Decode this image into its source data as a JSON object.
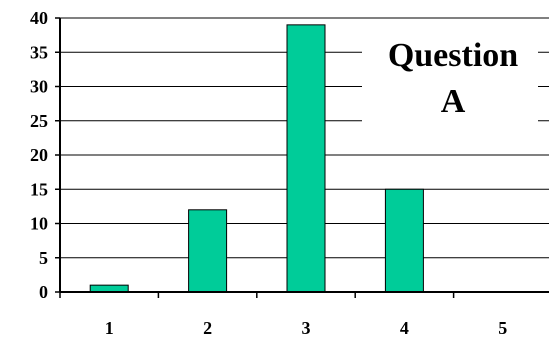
{
  "chart_data": {
    "type": "bar",
    "title": "Question A",
    "title_lines": [
      "Question",
      "A"
    ],
    "categories": [
      "1",
      "2",
      "3",
      "4",
      "5"
    ],
    "values": [
      1,
      12,
      39,
      15,
      0
    ],
    "xlabel": "",
    "ylabel": "",
    "ylim": [
      0,
      40
    ],
    "yticks": [
      "0",
      "5",
      "10",
      "15",
      "20",
      "25",
      "30",
      "35",
      "40"
    ],
    "grid": true,
    "legend": "none",
    "colors": {
      "bar_fill": "#00cc99",
      "bar_stroke": "#000000",
      "grid": "#000000",
      "axis": "#000000"
    }
  }
}
